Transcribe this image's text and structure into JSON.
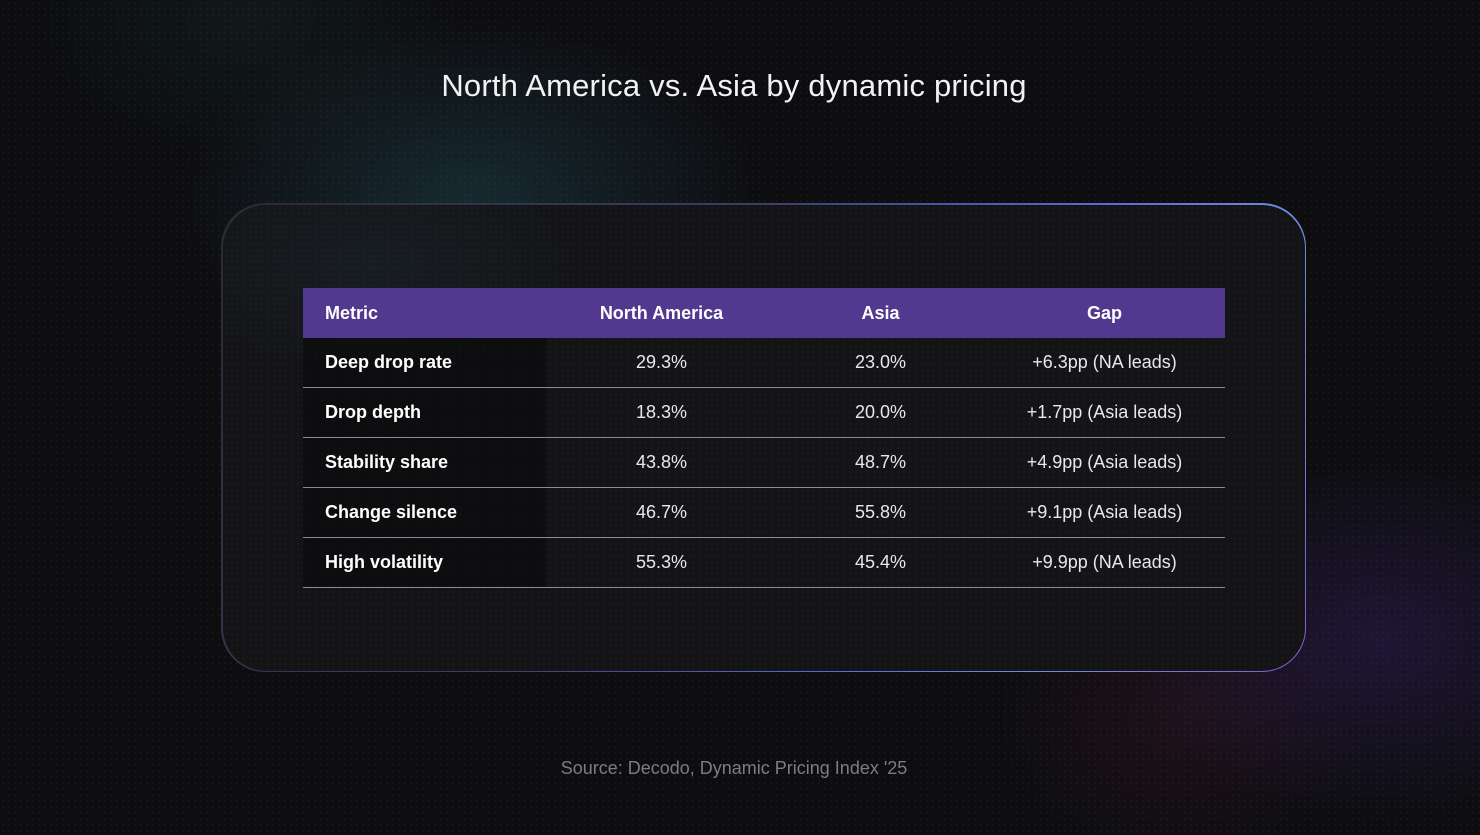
{
  "title": "North America vs. Asia by dynamic pricing",
  "source": "Source: Decodo, Dynamic Pricing Index '25",
  "colors": {
    "background": "#0d0d10",
    "header_fill": "#52388f",
    "card_border_accent": "#6d8de0"
  },
  "chart_data": {
    "type": "table",
    "title": "North America vs. Asia by dynamic pricing",
    "columns": [
      "Metric",
      "North America",
      "Asia",
      "Gap"
    ],
    "rows": [
      {
        "metric": "Deep drop rate",
        "north_america": "29.3%",
        "asia": "23.0%",
        "gap": "+6.3pp (NA leads)"
      },
      {
        "metric": "Drop depth",
        "north_america": "18.3%",
        "asia": "20.0%",
        "gap": "+1.7pp (Asia leads)"
      },
      {
        "metric": "Stability share",
        "north_america": "43.8%",
        "asia": "48.7%",
        "gap": "+4.9pp (Asia leads)"
      },
      {
        "metric": "Change silence",
        "north_america": "46.7%",
        "asia": "55.8%",
        "gap": "+9.1pp (Asia leads)"
      },
      {
        "metric": "High volatility",
        "north_america": "55.3%",
        "asia": "45.4%",
        "gap": "+9.9pp (NA leads)"
      }
    ]
  }
}
